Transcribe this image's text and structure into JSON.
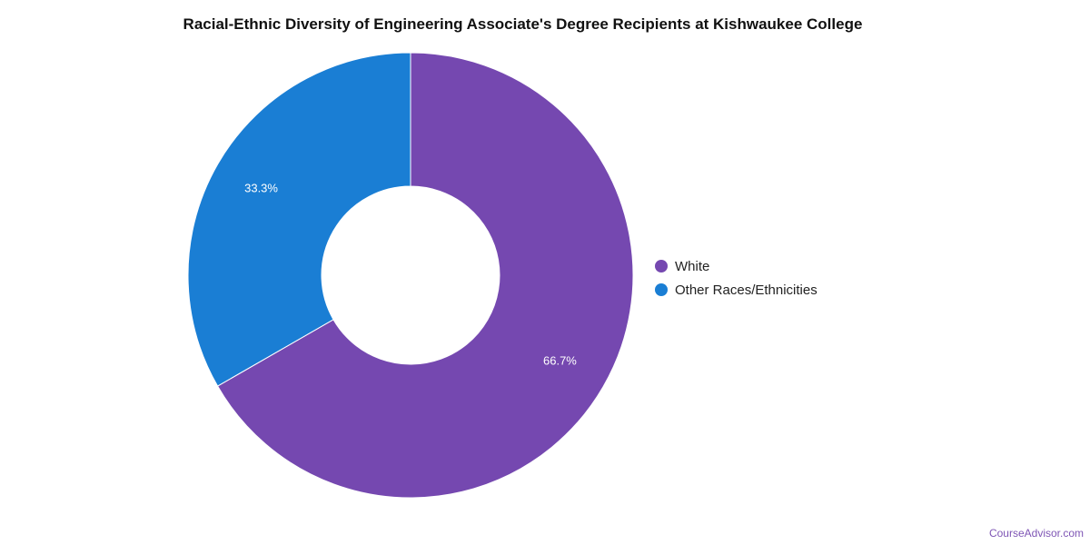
{
  "chart_data": {
    "type": "pie",
    "donut": true,
    "title": "Racial-Ethnic Diversity of Engineering Associate's Degree Recipients at Kishwaukee College",
    "legend_position": "right",
    "slices": [
      {
        "name": "White",
        "value": 66.7,
        "label": "66.7%",
        "color": "#7548b0"
      },
      {
        "name": "Other Races/Ethnicities",
        "value": 33.3,
        "label": "33.3%",
        "color": "#1a7ed4"
      }
    ]
  },
  "source_text": "CourseAdvisor.com"
}
